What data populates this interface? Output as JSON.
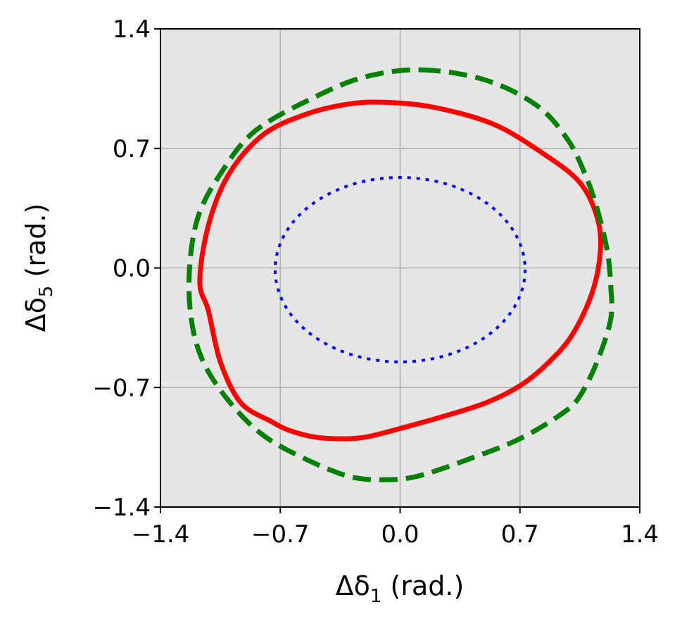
{
  "chart_data": {
    "type": "line",
    "xlabel": {
      "prefix": "Δδ",
      "sub": "1",
      "suffix": " (rad.)"
    },
    "ylabel": {
      "prefix": "Δδ",
      "sub": "5",
      "suffix": " (rad.)"
    },
    "xlim": [
      -1.4,
      1.4
    ],
    "ylim": [
      -1.4,
      1.4
    ],
    "xticks": [
      -1.4,
      -0.7,
      0.0,
      0.7,
      1.4
    ],
    "yticks": [
      -1.4,
      -0.7,
      0.0,
      0.7,
      1.4
    ],
    "xtick_labels": [
      "−1.4",
      "−0.7",
      "0.0",
      "0.7",
      "1.4"
    ],
    "ytick_labels": [
      "−1.4",
      "−0.7",
      "0.0",
      "0.7",
      "1.4"
    ],
    "grid": true,
    "background": "#e5e5e5",
    "series": [
      {
        "color": "#ff0000",
        "style": "solid",
        "x": [
          -0.09,
          0.2,
          0.55,
          0.85,
          1.05,
          1.15,
          1.17,
          1.12,
          1.0,
          0.85,
          0.7,
          0.5,
          0.25,
          0.0,
          -0.2,
          -0.35,
          -0.5,
          -0.65,
          -0.75,
          -0.93,
          -1.05,
          -1.12,
          -1.17,
          -1.12,
          -1.0,
          -0.8,
          -0.55,
          -0.3,
          -0.09
        ],
        "y": [
          0.97,
          0.94,
          0.84,
          0.66,
          0.5,
          0.3,
          0.1,
          -0.15,
          -0.4,
          -0.57,
          -0.69,
          -0.79,
          -0.87,
          -0.94,
          -0.99,
          -1.0,
          -0.99,
          -0.95,
          -0.9,
          -0.79,
          -0.55,
          -0.25,
          -0.08,
          0.25,
          0.55,
          0.78,
          0.9,
          0.96,
          0.97
        ]
      },
      {
        "color": "#008000",
        "style": "dashed",
        "x": [
          0.13,
          0.5,
          0.8,
          0.98,
          1.08,
          1.15,
          1.21,
          1.23,
          1.23,
          1.15,
          1.05,
          0.95,
          0.7,
          0.4,
          0.1,
          -0.1,
          -0.3,
          -0.55,
          -0.8,
          -1.0,
          -1.15,
          -1.22,
          -1.23,
          -1.18,
          -1.05,
          -0.85,
          -0.5,
          -0.2,
          0.13
        ],
        "y": [
          1.16,
          1.1,
          0.95,
          0.75,
          0.55,
          0.35,
          0.1,
          -0.1,
          -0.3,
          -0.55,
          -0.75,
          -0.85,
          -1.0,
          -1.12,
          -1.22,
          -1.24,
          -1.22,
          -1.12,
          -0.98,
          -0.78,
          -0.55,
          -0.3,
          0.0,
          0.3,
          0.55,
          0.8,
          1.0,
          1.12,
          1.16
        ]
      },
      {
        "color": "#0000ff",
        "style": "dotted",
        "ellipse": {
          "cx": 0.0,
          "cy": -0.01,
          "rx": 0.73,
          "ry": 0.54
        }
      }
    ]
  }
}
